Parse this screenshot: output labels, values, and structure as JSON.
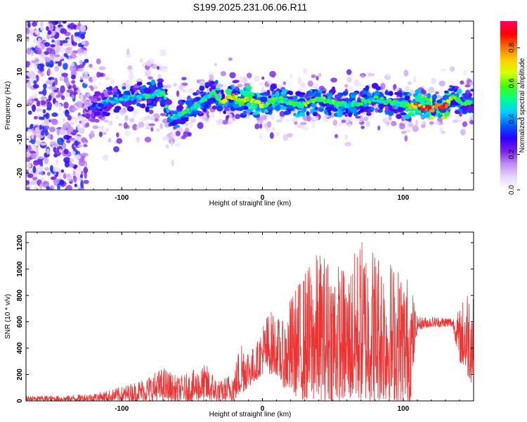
{
  "figure_title": "S199.2025.231.06.06.R11",
  "chart_data": [
    {
      "type": "heatmap",
      "title": "S199.2025.231.06.06.R11",
      "xlabel": "Height of straight line (km)",
      "ylabel": "Frequency (Hz)",
      "xlim": [
        -168,
        150
      ],
      "ylim": [
        -25,
        25
      ],
      "xticks": [
        -100,
        0,
        100
      ],
      "xtick_labels": [
        "-100",
        "0",
        "100"
      ],
      "yticks": [
        -20,
        -10,
        0,
        10,
        20
      ],
      "ytick_labels": [
        "-20",
        "-10",
        "0",
        "10",
        "20"
      ],
      "colorbar": {
        "label": "Normalized spectral amplitude",
        "range": [
          0.0,
          0.95
        ],
        "ticks": [
          0.0,
          0.2,
          0.4,
          0.6,
          0.8
        ],
        "tick_labels": [
          "0.0",
          "0.2",
          "0.4",
          "0.6",
          "0.8"
        ],
        "colors": [
          "#ffffff",
          "#e6d6ff",
          "#c08cf5",
          "#7a1fe6",
          "#2a00ff",
          "#0060ff",
          "#00d0ff",
          "#00ff90",
          "#40ff00",
          "#d8ff00",
          "#ffd000",
          "#ff7000",
          "#ff0000",
          "#ff0060"
        ]
      },
      "ridge": {
        "x": [
          -125,
          -110,
          -100,
          -90,
          -80,
          -70,
          -66,
          -60,
          -50,
          -40,
          -35,
          -30,
          -25,
          -20,
          -15,
          -10,
          -5,
          0,
          5,
          10,
          20,
          30,
          40,
          50,
          60,
          70,
          80,
          90,
          100,
          110,
          120,
          130,
          135,
          140,
          150
        ],
        "y": [
          -1,
          1,
          2,
          2.5,
          3,
          4,
          -4,
          -3,
          -1,
          2,
          4,
          1,
          2,
          3,
          1,
          2,
          1,
          0,
          1,
          2,
          1,
          0,
          2,
          1,
          0,
          1,
          2,
          1,
          0,
          0,
          -1,
          0,
          3,
          1,
          1
        ],
        "amplitude": [
          0.3,
          0.45,
          0.5,
          0.5,
          0.55,
          0.55,
          0.5,
          0.55,
          0.55,
          0.55,
          0.5,
          0.75,
          0.75,
          0.8,
          0.7,
          0.75,
          0.7,
          0.7,
          0.6,
          0.6,
          0.6,
          0.65,
          0.6,
          0.6,
          0.55,
          0.55,
          0.55,
          0.55,
          0.6,
          0.9,
          0.9,
          0.9,
          0.6,
          0.6,
          0.55
        ]
      },
      "noise_region_x": [
        -168,
        -125
      ]
    },
    {
      "type": "line",
      "xlabel": "Height of straight line (km)",
      "ylabel": "SNR (10 * v/v)",
      "xlim": [
        -168,
        150
      ],
      "ylim": [
        0,
        1280
      ],
      "xticks": [
        -100,
        0,
        100
      ],
      "xtick_labels": [
        "-100",
        "0",
        "100"
      ],
      "yticks": [
        0,
        200,
        400,
        600,
        800,
        1000,
        1200
      ],
      "ytick_labels": [
        "0",
        "200",
        "400",
        "600",
        "800",
        "1000",
        "1200"
      ],
      "series": [
        {
          "name": "SNR",
          "color": "#ee3333",
          "envelope_x": [
            -168,
            -140,
            -120,
            -110,
            -100,
            -90,
            -80,
            -70,
            -60,
            -50,
            -40,
            -30,
            -20,
            -15,
            -10,
            -5,
            0,
            5,
            10,
            15,
            20,
            30,
            40,
            50,
            60,
            70,
            80,
            90,
            100,
            105,
            110,
            120,
            130,
            135,
            140,
            145,
            150
          ],
          "upper": [
            40,
            40,
            60,
            80,
            110,
            150,
            200,
            260,
            180,
            230,
            280,
            150,
            250,
            500,
            420,
            400,
            600,
            700,
            650,
            600,
            800,
            1000,
            1150,
            1100,
            1000,
            1250,
            1200,
            1100,
            1000,
            950,
            640,
            640,
            640,
            640,
            700,
            880,
            960
          ],
          "lower": [
            0,
            0,
            0,
            0,
            0,
            0,
            0,
            0,
            0,
            0,
            0,
            0,
            0,
            50,
            100,
            150,
            200,
            200,
            200,
            100,
            50,
            0,
            0,
            0,
            0,
            0,
            0,
            0,
            0,
            0,
            540,
            560,
            560,
            560,
            300,
            200,
            100
          ]
        }
      ]
    }
  ]
}
